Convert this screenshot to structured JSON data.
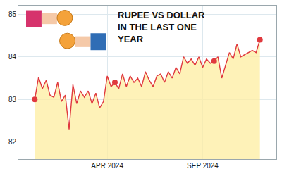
{
  "chart_data": {
    "type": "line",
    "title": "RUPEE VS DOLLAR IN THE LAST ONE YEAR",
    "categories": [
      null,
      null,
      null,
      null,
      null,
      null,
      null,
      null,
      null,
      null,
      null,
      null,
      null,
      null,
      null,
      null,
      null,
      null,
      null,
      "APR 2024",
      null,
      null,
      null,
      null,
      null,
      null,
      null,
      null,
      null,
      null,
      null,
      null,
      null,
      null,
      null,
      null,
      null,
      null,
      null,
      null,
      null,
      null,
      null,
      null,
      "SEP 2024",
      null,
      null,
      null,
      null,
      null,
      null,
      null,
      null,
      null,
      null,
      null,
      null,
      null,
      null,
      null
    ],
    "series": [
      {
        "type": "line",
        "color": "#e0393e",
        "line_style": "solid",
        "values": [
          83.0,
          83.52,
          83.25,
          83.45,
          83.1,
          83.05,
          83.4,
          82.95,
          83.1,
          82.3,
          83.35,
          82.9,
          83.2,
          83.05,
          83.2,
          82.9,
          83.15,
          82.8,
          82.95,
          83.55,
          83.3,
          83.4,
          83.25,
          83.6,
          83.3,
          83.55,
          83.4,
          83.5,
          83.3,
          83.65,
          83.45,
          83.3,
          83.55,
          83.6,
          83.4,
          83.65,
          83.5,
          83.75,
          83.6,
          84.0,
          83.85,
          83.95,
          83.8,
          84.0,
          83.75,
          83.95,
          83.85,
          83.9,
          84.0,
          83.5,
          83.8,
          84.1,
          83.95,
          84.3,
          84.0,
          84.05,
          84.1,
          84.15,
          84.1,
          84.4
        ]
      },
      {
        "type": "scatter",
        "color": "#e0393e",
        "marker": "circle",
        "values": [
          83.0,
          null,
          null,
          null,
          null,
          null,
          null,
          null,
          null,
          null,
          null,
          null,
          null,
          null,
          null,
          null,
          null,
          null,
          null,
          null,
          null,
          83.4,
          null,
          null,
          null,
          null,
          null,
          null,
          null,
          null,
          null,
          null,
          null,
          null,
          null,
          null,
          null,
          null,
          null,
          null,
          null,
          null,
          null,
          null,
          null,
          null,
          null,
          83.9,
          null,
          null,
          null,
          null,
          null,
          null,
          null,
          null,
          null,
          null,
          null,
          84.4
        ]
      }
    ],
    "ylim": [
      81.6,
      85.2
    ],
    "yticks": [
      82,
      83,
      84,
      85
    ],
    "grid": true
  }
}
